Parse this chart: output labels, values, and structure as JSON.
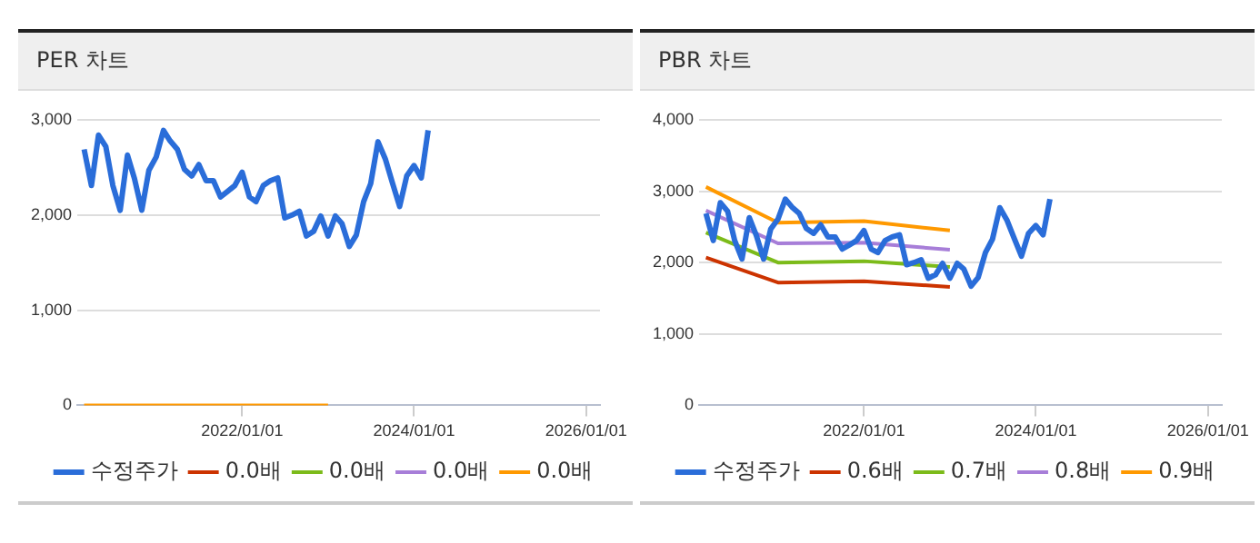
{
  "chart_data": [
    {
      "type": "line",
      "title": "PER 차트",
      "grid": "y",
      "legend": "bottom",
      "xlim": [
        "2020-02",
        "2026-03"
      ],
      "xticks": [
        {
          "value": "2022-01-01",
          "label": "2022/01/01"
        },
        {
          "value": "2024-01-01",
          "label": "2024/01/01"
        },
        {
          "value": "2026-01-01",
          "label": "2026/01/01"
        }
      ],
      "ylim": [
        0,
        3000
      ],
      "yticks": [
        {
          "value": 0,
          "label": "0"
        },
        {
          "value": 1000,
          "label": "1,000"
        },
        {
          "value": 2000,
          "label": "2,000"
        },
        {
          "value": 3000,
          "label": "3,000"
        }
      ],
      "series": [
        {
          "name": "수정주가",
          "color": "#2a6dd9",
          "x": [
            "2020-03",
            "2020-04",
            "2020-05",
            "2020-06",
            "2020-07",
            "2020-08",
            "2020-09",
            "2020-10",
            "2020-11",
            "2020-12",
            "2021-01",
            "2021-02",
            "2021-03",
            "2021-04",
            "2021-05",
            "2021-06",
            "2021-07",
            "2021-08",
            "2021-09",
            "2021-10",
            "2021-11",
            "2021-12",
            "2022-01",
            "2022-02",
            "2022-03",
            "2022-04",
            "2022-05",
            "2022-06",
            "2022-07",
            "2022-08",
            "2022-09",
            "2022-10",
            "2022-11",
            "2022-12",
            "2023-01",
            "2023-02",
            "2023-03",
            "2023-04",
            "2023-05",
            "2023-06",
            "2023-07",
            "2023-08",
            "2023-09",
            "2023-10",
            "2023-11",
            "2023-12",
            "2024-01",
            "2024-02",
            "2024-03"
          ],
          "values": [
            2690,
            2310,
            2840,
            2720,
            2310,
            2050,
            2630,
            2380,
            2050,
            2470,
            2610,
            2890,
            2780,
            2690,
            2480,
            2410,
            2530,
            2360,
            2360,
            2190,
            2250,
            2310,
            2450,
            2190,
            2140,
            2310,
            2360,
            2390,
            1970,
            2000,
            2040,
            1780,
            1830,
            1990,
            1780,
            1990,
            1910,
            1670,
            1790,
            2140,
            2330,
            2770,
            2590,
            2340,
            2090,
            2410,
            2520,
            2390,
            2890
          ]
        },
        {
          "name": "0.0배",
          "color": "#cc3300"
        },
        {
          "name": "0.0배",
          "color": "#7cbb1a"
        },
        {
          "name": "0.0배",
          "color": "#a77ed8"
        },
        {
          "name": "0.0배",
          "color": "#ff9900",
          "x": [
            "2020-03",
            "2021-01",
            "2022-01",
            "2023-01"
          ],
          "values": [
            0,
            0,
            0,
            0
          ]
        }
      ]
    },
    {
      "type": "line",
      "title": "PBR 차트",
      "grid": "y",
      "legend": "bottom",
      "xlim": [
        "2020-02",
        "2026-03"
      ],
      "xticks": [
        {
          "value": "2022-01-01",
          "label": "2022/01/01"
        },
        {
          "value": "2024-01-01",
          "label": "2024/01/01"
        },
        {
          "value": "2026-01-01",
          "label": "2026/01/01"
        }
      ],
      "ylim": [
        0,
        4000
      ],
      "yticks": [
        {
          "value": 0,
          "label": "0"
        },
        {
          "value": 1000,
          "label": "1,000"
        },
        {
          "value": 2000,
          "label": "2,000"
        },
        {
          "value": 3000,
          "label": "3,000"
        },
        {
          "value": 4000,
          "label": "4,000"
        }
      ],
      "series": [
        {
          "name": "수정주가",
          "color": "#2a6dd9",
          "x": [
            "2020-03",
            "2020-04",
            "2020-05",
            "2020-06",
            "2020-07",
            "2020-08",
            "2020-09",
            "2020-10",
            "2020-11",
            "2020-12",
            "2021-01",
            "2021-02",
            "2021-03",
            "2021-04",
            "2021-05",
            "2021-06",
            "2021-07",
            "2021-08",
            "2021-09",
            "2021-10",
            "2021-11",
            "2021-12",
            "2022-01",
            "2022-02",
            "2022-03",
            "2022-04",
            "2022-05",
            "2022-06",
            "2022-07",
            "2022-08",
            "2022-09",
            "2022-10",
            "2022-11",
            "2022-12",
            "2023-01",
            "2023-02",
            "2023-03",
            "2023-04",
            "2023-05",
            "2023-06",
            "2023-07",
            "2023-08",
            "2023-09",
            "2023-10",
            "2023-11",
            "2023-12",
            "2024-01",
            "2024-02",
            "2024-03"
          ],
          "values": [
            2690,
            2310,
            2840,
            2720,
            2310,
            2050,
            2630,
            2380,
            2050,
            2470,
            2610,
            2890,
            2780,
            2690,
            2480,
            2410,
            2530,
            2360,
            2360,
            2190,
            2250,
            2310,
            2450,
            2190,
            2140,
            2310,
            2360,
            2390,
            1970,
            2000,
            2040,
            1780,
            1830,
            1990,
            1780,
            1990,
            1910,
            1670,
            1790,
            2140,
            2330,
            2770,
            2590,
            2340,
            2090,
            2410,
            2520,
            2390,
            2890
          ]
        },
        {
          "name": "0.6배",
          "color": "#cc3300",
          "x": [
            "2020-03",
            "2021-01",
            "2022-01",
            "2023-01"
          ],
          "values": [
            2070,
            1720,
            1740,
            1660
          ]
        },
        {
          "name": "0.7배",
          "color": "#7cbb1a",
          "x": [
            "2020-03",
            "2021-01",
            "2022-01",
            "2023-01"
          ],
          "values": [
            2420,
            2000,
            2020,
            1940
          ]
        },
        {
          "name": "0.8배",
          "color": "#a77ed8",
          "x": [
            "2020-03",
            "2021-01",
            "2022-01",
            "2023-01"
          ],
          "values": [
            2730,
            2270,
            2280,
            2180
          ]
        },
        {
          "name": "0.9배",
          "color": "#ff9900",
          "x": [
            "2020-03",
            "2021-01",
            "2022-01",
            "2023-01"
          ],
          "values": [
            3060,
            2560,
            2580,
            2450
          ]
        }
      ]
    }
  ]
}
